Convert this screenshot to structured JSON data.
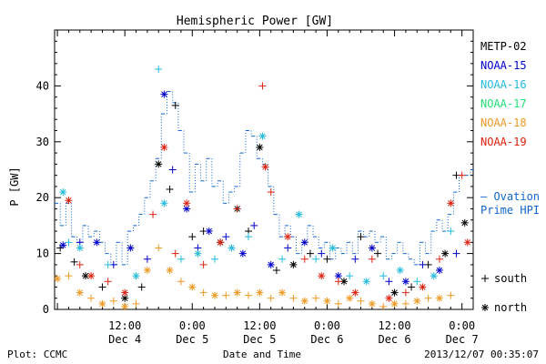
{
  "chart_data": {
    "type": "scatter",
    "title": "Hemispheric Power [GW]",
    "ylabel": "P [GW]",
    "xlabel": "Date and Time",
    "ylim": [
      0,
      50
    ],
    "yticks": [
      0,
      10,
      20,
      30,
      40
    ],
    "xlim_hours": [
      -24.5,
      50
    ],
    "xticks": [
      {
        "hours": -12,
        "time": "12:00",
        "date": "Dec 4"
      },
      {
        "hours": 0,
        "time": "0:00",
        "date": "Dec 5"
      },
      {
        "hours": 12,
        "time": "12:00",
        "date": "Dec 5"
      },
      {
        "hours": 24,
        "time": "0:00",
        "date": "Dec 6"
      },
      {
        "hours": 36,
        "time": "12:00",
        "date": "Dec 6"
      },
      {
        "hours": 48,
        "time": "0:00",
        "date": "Dec 7"
      }
    ],
    "legend": {
      "placement": "right",
      "symbol_south": "+",
      "symbol_north": "*",
      "south_label": "south",
      "north_label": "north"
    },
    "series": [
      {
        "name": "METP-02",
        "color": "#000000",
        "points": [
          [
            -23.5,
            11,
            "s"
          ],
          [
            -21,
            8.5,
            "s"
          ],
          [
            -19,
            6,
            "n"
          ],
          [
            -16,
            4,
            "s"
          ],
          [
            -12,
            2,
            "n"
          ],
          [
            -9,
            4,
            "s"
          ],
          [
            -6,
            26,
            "n"
          ],
          [
            -4,
            21.5,
            "s"
          ],
          [
            -3,
            36.5,
            "s"
          ],
          [
            0,
            13,
            "s"
          ],
          [
            2,
            14,
            "s"
          ],
          [
            5,
            12,
            "n"
          ],
          [
            8,
            18,
            "n"
          ],
          [
            10,
            14,
            "s"
          ],
          [
            12,
            29,
            "n"
          ],
          [
            15,
            7,
            "s"
          ],
          [
            18,
            8,
            "n"
          ],
          [
            21,
            10,
            "s"
          ],
          [
            24,
            9,
            "s"
          ],
          [
            27,
            5,
            "n"
          ],
          [
            30,
            13,
            "s"
          ],
          [
            33,
            10,
            "s"
          ],
          [
            36,
            3,
            "n"
          ],
          [
            39,
            4,
            "s"
          ],
          [
            42,
            8,
            "s"
          ],
          [
            45,
            10,
            "n"
          ],
          [
            47,
            24,
            "s"
          ],
          [
            48.5,
            15.5,
            "n"
          ]
        ]
      },
      {
        "name": "NOAA-15",
        "color": "#0000cc",
        "points": [
          [
            -23,
            11.5,
            "n"
          ],
          [
            -20,
            12,
            "s"
          ],
          [
            -17,
            12,
            "n"
          ],
          [
            -14,
            8,
            "s"
          ],
          [
            -11,
            11,
            "n"
          ],
          [
            -8,
            9,
            "s"
          ],
          [
            -5,
            38.5,
            "n"
          ],
          [
            -3.5,
            25,
            "s"
          ],
          [
            -1,
            18,
            "n"
          ],
          [
            1,
            11,
            "s"
          ],
          [
            3,
            14,
            "n"
          ],
          [
            6,
            13,
            "s"
          ],
          [
            9,
            10,
            "n"
          ],
          [
            11,
            15,
            "s"
          ],
          [
            14,
            8,
            "n"
          ],
          [
            17,
            11,
            "s"
          ],
          [
            20,
            12,
            "n"
          ],
          [
            23,
            10,
            "s"
          ],
          [
            26,
            6,
            "n"
          ],
          [
            29,
            9,
            "s"
          ],
          [
            32,
            11,
            "n"
          ],
          [
            35,
            5,
            "s"
          ],
          [
            38,
            5,
            "n"
          ],
          [
            41,
            8,
            "s"
          ],
          [
            44,
            7,
            "n"
          ],
          [
            47,
            10,
            "s"
          ]
        ]
      },
      {
        "name": "NOAA-16",
        "color": "#22bbdd",
        "points": [
          [
            -23,
            21,
            "n"
          ],
          [
            -22,
            12,
            "s"
          ],
          [
            -20,
            11,
            "n"
          ],
          [
            -15,
            8,
            "s"
          ],
          [
            -10,
            6,
            "n"
          ],
          [
            -6,
            43,
            "s"
          ],
          [
            -5,
            19,
            "n"
          ],
          [
            -2,
            9,
            "s"
          ],
          [
            1,
            10,
            "n"
          ],
          [
            4,
            9,
            "s"
          ],
          [
            7,
            11,
            "n"
          ],
          [
            10,
            13,
            "s"
          ],
          [
            12.5,
            31,
            "n"
          ],
          [
            16,
            9,
            "s"
          ],
          [
            19,
            17,
            "n"
          ],
          [
            22,
            9,
            "s"
          ],
          [
            25,
            11,
            "n"
          ],
          [
            28,
            6,
            "s"
          ],
          [
            31,
            5,
            "n"
          ],
          [
            34,
            6,
            "s"
          ],
          [
            37,
            7,
            "n"
          ],
          [
            40,
            5,
            "s"
          ],
          [
            43,
            6,
            "n"
          ],
          [
            46,
            14,
            "s"
          ]
        ]
      },
      {
        "name": "NOAA-17",
        "color": "#22dd77",
        "points": []
      },
      {
        "name": "NOAA-18",
        "color": "#ee9922",
        "points": [
          [
            -24,
            5.5,
            "n"
          ],
          [
            -22,
            6,
            "s"
          ],
          [
            -20,
            3,
            "n"
          ],
          [
            -18,
            2,
            "s"
          ],
          [
            -16,
            1,
            "n"
          ],
          [
            -14,
            1.5,
            "s"
          ],
          [
            -12,
            0.5,
            "n"
          ],
          [
            -10,
            1,
            "s"
          ],
          [
            -8,
            7,
            "n"
          ],
          [
            -6,
            11,
            "s"
          ],
          [
            -4,
            7,
            "n"
          ],
          [
            -2,
            5,
            "s"
          ],
          [
            0,
            4,
            "n"
          ],
          [
            2,
            3,
            "s"
          ],
          [
            4,
            2.5,
            "n"
          ],
          [
            6,
            2.5,
            "s"
          ],
          [
            8,
            3,
            "n"
          ],
          [
            10,
            2.5,
            "s"
          ],
          [
            12,
            3,
            "n"
          ],
          [
            14,
            2,
            "s"
          ],
          [
            16,
            3,
            "n"
          ],
          [
            18,
            2,
            "s"
          ],
          [
            20,
            1.5,
            "n"
          ],
          [
            22,
            2,
            "s"
          ],
          [
            24,
            1.5,
            "n"
          ],
          [
            26,
            1,
            "s"
          ],
          [
            28,
            2,
            "n"
          ],
          [
            30,
            1.5,
            "s"
          ],
          [
            32,
            1,
            "n"
          ],
          [
            34,
            0.5,
            "s"
          ],
          [
            36,
            1,
            "n"
          ],
          [
            38,
            1,
            "s"
          ],
          [
            40,
            1.5,
            "n"
          ],
          [
            42,
            2,
            "s"
          ],
          [
            44,
            2,
            "n"
          ],
          [
            46,
            2.5,
            "s"
          ]
        ]
      },
      {
        "name": "NOAA-19",
        "color": "#dd2211",
        "points": [
          [
            -22,
            19.5,
            "n"
          ],
          [
            -20,
            8,
            "s"
          ],
          [
            -18,
            6,
            "n"
          ],
          [
            -15,
            5,
            "s"
          ],
          [
            -12,
            3,
            "n"
          ],
          [
            -7,
            17,
            "s"
          ],
          [
            -5,
            29,
            "n"
          ],
          [
            -3,
            10,
            "s"
          ],
          [
            -1,
            19,
            "n"
          ],
          [
            2,
            8,
            "s"
          ],
          [
            5,
            12,
            "n"
          ],
          [
            8,
            18,
            "s"
          ],
          [
            12.5,
            40,
            "s"
          ],
          [
            13,
            25.5,
            "n"
          ],
          [
            14,
            21,
            "s"
          ],
          [
            17,
            13,
            "n"
          ],
          [
            20,
            9,
            "s"
          ],
          [
            23,
            6,
            "n"
          ],
          [
            26,
            5,
            "s"
          ],
          [
            29,
            3,
            "n"
          ],
          [
            32,
            9,
            "s"
          ],
          [
            35,
            2,
            "n"
          ],
          [
            38,
            3,
            "s"
          ],
          [
            41,
            4,
            "n"
          ],
          [
            44,
            9,
            "s"
          ],
          [
            46,
            19,
            "n"
          ],
          [
            48,
            24,
            "s"
          ],
          [
            49,
            12,
            "n"
          ]
        ]
      }
    ],
    "ovation": {
      "name": "– Ovation Prime HPI",
      "name_line1": "– Ovation",
      "name_line2": "Prime HPI",
      "color": "#1166cc",
      "steps": [
        [
          -24.5,
          19
        ],
        [
          -23.5,
          15
        ],
        [
          -22.5,
          19
        ],
        [
          -21.5,
          13
        ],
        [
          -20.5,
          12
        ],
        [
          -19.5,
          15
        ],
        [
          -18.5,
          13
        ],
        [
          -17.5,
          14
        ],
        [
          -16.5,
          12
        ],
        [
          -15.5,
          10
        ],
        [
          -14.5,
          8
        ],
        [
          -13.5,
          12
        ],
        [
          -12.5,
          8
        ],
        [
          -11.5,
          14
        ],
        [
          -10.5,
          15
        ],
        [
          -9.5,
          17
        ],
        [
          -8.5,
          20
        ],
        [
          -7.5,
          23
        ],
        [
          -6.5,
          27
        ],
        [
          -5.5,
          35
        ],
        [
          -4.5,
          39
        ],
        [
          -3.5,
          37
        ],
        [
          -2.5,
          32
        ],
        [
          -1.5,
          28
        ],
        [
          -0.5,
          21
        ],
        [
          0.5,
          26
        ],
        [
          1.5,
          23
        ],
        [
          2.5,
          27
        ],
        [
          3.5,
          22
        ],
        [
          4.5,
          23
        ],
        [
          5.5,
          19
        ],
        [
          6.5,
          21
        ],
        [
          7.5,
          22
        ],
        [
          8.5,
          28
        ],
        [
          9.5,
          32
        ],
        [
          10.5,
          31
        ],
        [
          11.5,
          27
        ],
        [
          12.5,
          26
        ],
        [
          13.5,
          22
        ],
        [
          14.5,
          17
        ],
        [
          15.5,
          13
        ],
        [
          16.5,
          15
        ],
        [
          17.5,
          13
        ],
        [
          18.5,
          10
        ],
        [
          19.5,
          12
        ],
        [
          20.5,
          15
        ],
        [
          21.5,
          13
        ],
        [
          22.5,
          11
        ],
        [
          23.5,
          12
        ],
        [
          24.5,
          9
        ],
        [
          25.5,
          11
        ],
        [
          26.5,
          10
        ],
        [
          27.5,
          12
        ],
        [
          28.5,
          10
        ],
        [
          29.5,
          14
        ],
        [
          30.5,
          13
        ],
        [
          31.5,
          14
        ],
        [
          32.5,
          12
        ],
        [
          33.5,
          13
        ],
        [
          34.5,
          9
        ],
        [
          35.5,
          10
        ],
        [
          36.5,
          12
        ],
        [
          37.5,
          10
        ],
        [
          38.5,
          9
        ],
        [
          39.5,
          8
        ],
        [
          40.5,
          12
        ],
        [
          41.5,
          10
        ],
        [
          42.5,
          14
        ],
        [
          43.5,
          16
        ],
        [
          44.5,
          14
        ],
        [
          45.5,
          17
        ],
        [
          46.5,
          21
        ],
        [
          47.5,
          24
        ],
        [
          48.5,
          24
        ],
        [
          49.5,
          25
        ]
      ]
    }
  },
  "footer": {
    "plot_source": "Plot: CCMC",
    "timestamp": "2013/12/07 00:35:07"
  }
}
